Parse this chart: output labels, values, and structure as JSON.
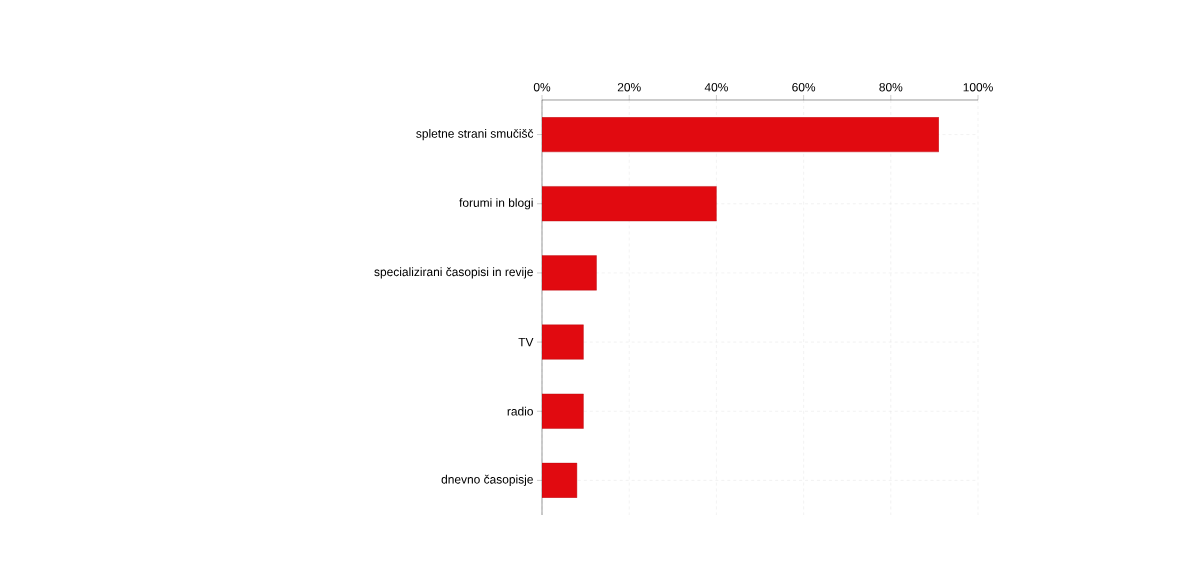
{
  "chart_data": {
    "type": "bar",
    "orientation": "horizontal",
    "categories": [
      "spletne strani smučišč",
      "forumi in blogi",
      "specializirani časopisi in revije",
      "TV",
      "radio",
      "dnevno časopisje"
    ],
    "values": [
      91,
      40,
      12.5,
      9.5,
      9.5,
      8
    ],
    "color": "#e10a10",
    "xlim": [
      0,
      100
    ],
    "xticks": [
      {
        "value": 0,
        "label": "0%"
      },
      {
        "value": 20,
        "label": "20%"
      },
      {
        "value": 40,
        "label": "40%"
      },
      {
        "value": 60,
        "label": "60%"
      },
      {
        "value": 80,
        "label": "80%"
      },
      {
        "value": 100,
        "label": "100%"
      }
    ],
    "grid": true
  }
}
